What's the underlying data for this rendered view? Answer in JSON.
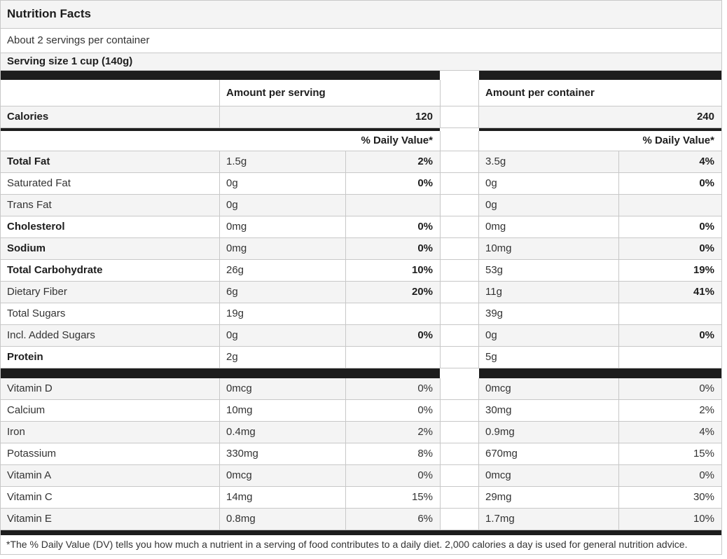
{
  "colors": {
    "bar": "#1d1d1d",
    "stripe": "#f4f4f4",
    "border": "#c8c8c8",
    "text": "#333333",
    "bold": "#1d1d1d"
  },
  "header": {
    "title": "Nutrition Facts",
    "servings_per_container": "About 2 servings per container",
    "serving_size": "Serving size 1 cup (140g)"
  },
  "columns": {
    "serving": "Amount per serving",
    "container": "Amount per container",
    "daily_value": "% Daily Value*"
  },
  "calories": {
    "label": "Calories",
    "per_serving": "120",
    "per_container": "240"
  },
  "nutrients": [
    {
      "label": "Total Fat",
      "serving_amount": "1.5g",
      "serving_dv": "2%",
      "container_amount": "3.5g",
      "container_dv": "4%"
    },
    {
      "label": "Saturated Fat",
      "serving_amount": "0g",
      "serving_dv": "0%",
      "container_amount": "0g",
      "container_dv": "0%"
    },
    {
      "label": "Trans Fat",
      "serving_amount": "0g",
      "serving_dv": "",
      "container_amount": "0g",
      "container_dv": ""
    },
    {
      "label": "Cholesterol",
      "serving_amount": "0mg",
      "serving_dv": "0%",
      "container_amount": "0mg",
      "container_dv": "0%"
    },
    {
      "label": "Sodium",
      "serving_amount": "0mg",
      "serving_dv": "0%",
      "container_amount": "10mg",
      "container_dv": "0%"
    },
    {
      "label": "Total Carbohydrate",
      "serving_amount": "26g",
      "serving_dv": "10%",
      "container_amount": "53g",
      "container_dv": "19%"
    },
    {
      "label": "Dietary Fiber",
      "serving_amount": "6g",
      "serving_dv": "20%",
      "container_amount": "11g",
      "container_dv": "41%"
    },
    {
      "label": "Total Sugars",
      "serving_amount": "19g",
      "serving_dv": "",
      "container_amount": "39g",
      "container_dv": ""
    },
    {
      "label": "Incl. Added Sugars",
      "serving_amount": "0g",
      "serving_dv": "0%",
      "container_amount": "0g",
      "container_dv": "0%"
    },
    {
      "label": "Protein",
      "serving_amount": "2g",
      "serving_dv": "",
      "container_amount": "5g",
      "container_dv": ""
    }
  ],
  "vitamins": [
    {
      "label": "Vitamin D",
      "serving_amount": "0mcg",
      "serving_dv": "0%",
      "container_amount": "0mcg",
      "container_dv": "0%"
    },
    {
      "label": "Calcium",
      "serving_amount": "10mg",
      "serving_dv": "0%",
      "container_amount": "30mg",
      "container_dv": "2%"
    },
    {
      "label": "Iron",
      "serving_amount": "0.4mg",
      "serving_dv": "2%",
      "container_amount": "0.9mg",
      "container_dv": "4%"
    },
    {
      "label": "Potassium",
      "serving_amount": "330mg",
      "serving_dv": "8%",
      "container_amount": "670mg",
      "container_dv": "15%"
    },
    {
      "label": "Vitamin A",
      "serving_amount": "0mcg",
      "serving_dv": "0%",
      "container_amount": "0mcg",
      "container_dv": "0%"
    },
    {
      "label": "Vitamin C",
      "serving_amount": "14mg",
      "serving_dv": "15%",
      "container_amount": "29mg",
      "container_dv": "30%"
    },
    {
      "label": "Vitamin E",
      "serving_amount": "0.8mg",
      "serving_dv": "6%",
      "container_amount": "1.7mg",
      "container_dv": "10%"
    }
  ],
  "footnote": "*The % Daily Value (DV) tells you how much a nutrient in a serving of food contributes to a daily diet. 2,000 calories a day is used for general nutrition advice."
}
